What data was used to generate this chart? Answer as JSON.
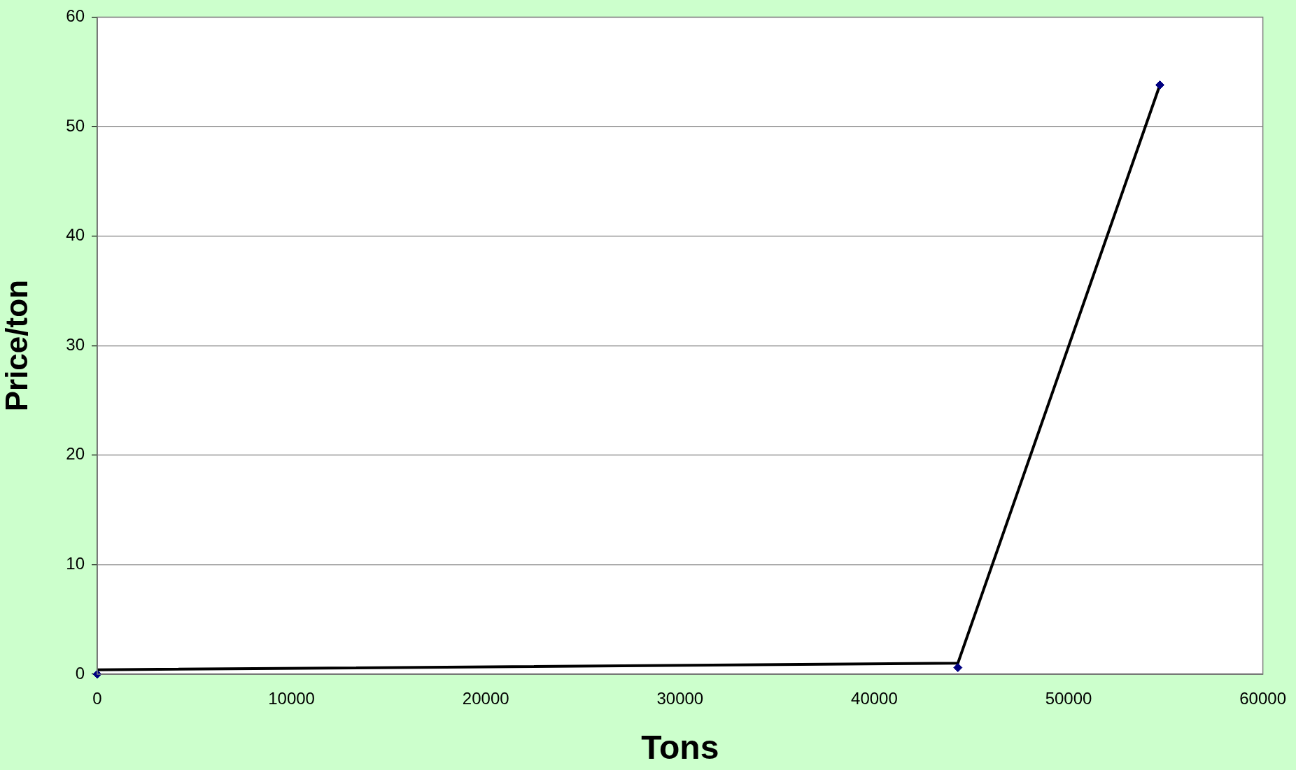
{
  "chart_data": {
    "type": "scatter",
    "xlabel": "Tons",
    "ylabel": "Price/ton",
    "series": [
      {
        "type": "line",
        "color": "#000000",
        "marker": "none",
        "x": [
          0,
          44300,
          54700
        ],
        "values": [
          0.4,
          1.0,
          53.8
        ]
      },
      {
        "color": "#000080",
        "x": [
          0,
          44300,
          54700
        ],
        "values": [
          0,
          0.6,
          53.8
        ]
      }
    ],
    "xlim": [
      0,
      60000
    ],
    "xticks": [
      0,
      10000,
      20000,
      30000,
      40000,
      50000,
      60000
    ],
    "ylim": [
      0,
      60
    ],
    "yticks": [
      0,
      10,
      20,
      30,
      40,
      50,
      60
    ],
    "grid": "y",
    "marker": "diamond",
    "legend": false
  }
}
